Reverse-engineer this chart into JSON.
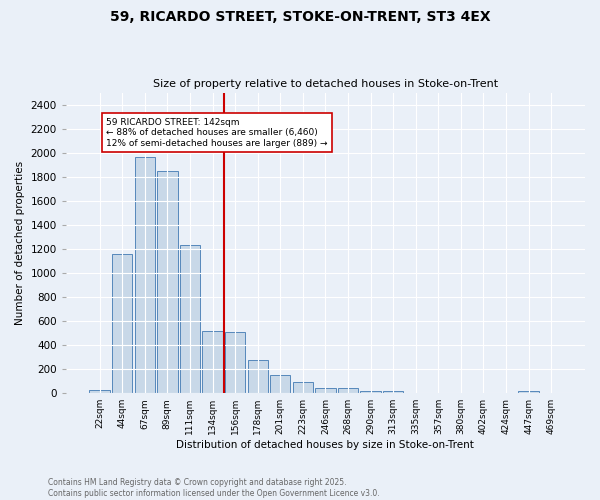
{
  "title_line1": "59, RICARDO STREET, STOKE-ON-TRENT, ST3 4EX",
  "title_line2": "Size of property relative to detached houses in Stoke-on-Trent",
  "xlabel": "Distribution of detached houses by size in Stoke-on-Trent",
  "ylabel": "Number of detached properties",
  "bar_labels": [
    "22sqm",
    "44sqm",
    "67sqm",
    "89sqm",
    "111sqm",
    "134sqm",
    "156sqm",
    "178sqm",
    "201sqm",
    "223sqm",
    "246sqm",
    "268sqm",
    "290sqm",
    "313sqm",
    "335sqm",
    "357sqm",
    "380sqm",
    "402sqm",
    "424sqm",
    "447sqm",
    "469sqm"
  ],
  "bar_values": [
    25,
    1160,
    1960,
    1850,
    1230,
    520,
    510,
    275,
    150,
    90,
    40,
    40,
    20,
    15,
    5,
    5,
    3,
    2,
    2,
    15,
    2
  ],
  "bar_color": "#c8d8e8",
  "bar_edge_color": "#5588bb",
  "vline_x": 5.5,
  "vline_color": "#cc0000",
  "annotation_text": "59 RICARDO STREET: 142sqm\n← 88% of detached houses are smaller (6,460)\n12% of semi-detached houses are larger (889) →",
  "annotation_box_color": "#ffffff",
  "annotation_box_edge_color": "#cc0000",
  "ylim": [
    0,
    2500
  ],
  "yticks": [
    0,
    200,
    400,
    600,
    800,
    1000,
    1200,
    1400,
    1600,
    1800,
    2000,
    2200,
    2400
  ],
  "footer_line1": "Contains HM Land Registry data © Crown copyright and database right 2025.",
  "footer_line2": "Contains public sector information licensed under the Open Government Licence v3.0.",
  "bg_color": "#eaf0f8",
  "plot_bg_color": "#eaf0f8",
  "grid_color": "#ffffff"
}
